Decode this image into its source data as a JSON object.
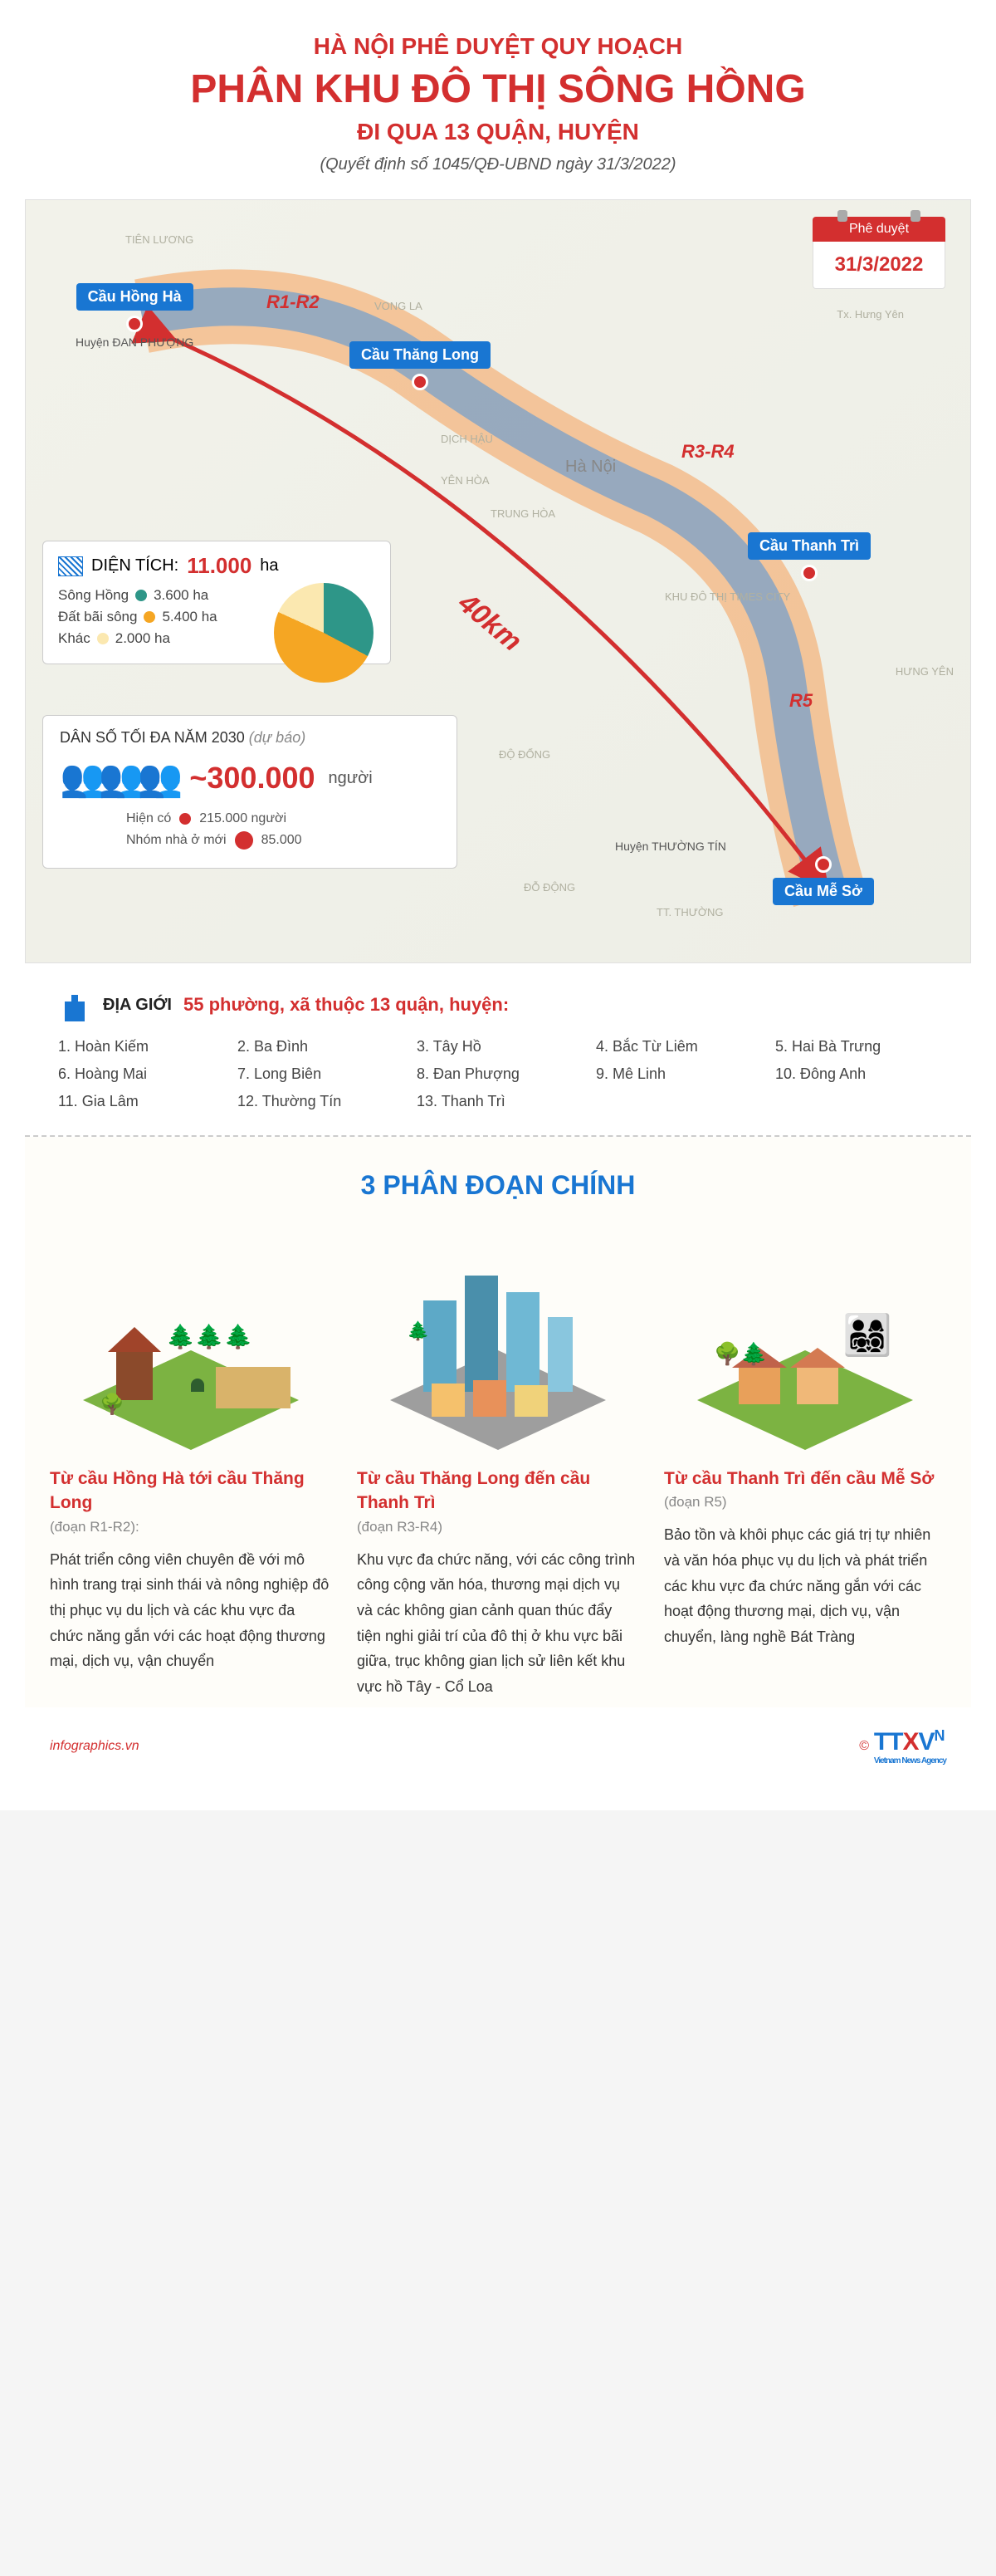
{
  "header": {
    "line1": "HÀ NỘI PHÊ DUYỆT QUY HOẠCH",
    "line2": "PHÂN KHU ĐÔ THỊ SÔNG HỒNG",
    "line3": "ĐI QUA 13 QUẬN, HUYỆN",
    "subtitle": "(Quyết định số 1045/QĐ-UBND ngày 31/3/2022)"
  },
  "date_tag": {
    "label": "Phê duyệt",
    "value": "31/3/2022"
  },
  "map": {
    "length_label": "40km",
    "bg_places": [
      "TIÊN LƯƠNG",
      "VONG LA",
      "DỊCH HẬU",
      "YÊN HÒA",
      "Hà Nội",
      "TRUNG HÒA",
      "KHU ĐÔ THỊ TIMES CITY",
      "ĐỘ ĐỔNG",
      "ĐỖ ĐỘNG",
      "HƯNG YÊN",
      "Tx. Hưng Yên",
      "Huyện ĐAN PHƯỢNG",
      "Huyện THƯỜNG TÍN",
      "TT. THƯỜNG"
    ],
    "markers": [
      {
        "name": "Cầu Hồng Hà",
        "sub": "Huyện ĐAN PHƯỢNG"
      },
      {
        "name": "Cầu Thăng Long",
        "sub": ""
      },
      {
        "name": "Cầu Thanh Trì",
        "sub": ""
      },
      {
        "name": "Cầu Mễ Sở",
        "sub": "Huyện THƯỜNG TÍN"
      }
    ],
    "zones": [
      "R1-R2",
      "R3-R4",
      "R5"
    ],
    "river_label": "Sông Hồng",
    "river_color": "#8fb4d9",
    "corridor_colors": [
      "#f5a05a",
      "#7fa3c7"
    ],
    "arrow_color": "#d32f2f"
  },
  "area": {
    "title_label": "DIỆN TÍCH:",
    "total": "11.000",
    "unit": "ha",
    "items": [
      {
        "label": "Sông Hồng",
        "value": "3.600 ha",
        "color": "#2e9688"
      },
      {
        "label": "Đất bãi sông",
        "value": "5.400 ha",
        "color": "#f5a623"
      },
      {
        "label": "Khác",
        "value": "2.000 ha",
        "color": "#fbe8b0"
      }
    ],
    "pie_values": [
      3600,
      5400,
      2000
    ]
  },
  "population": {
    "title": "DÂN SỐ TỐI ĐA NĂM 2030",
    "title_note": "(dự báo)",
    "main_value": "~300.000",
    "main_unit": "người",
    "sub": [
      {
        "label": "Hiện có",
        "value": "215.000 người",
        "dot_size": 14,
        "color": "#d32f2f"
      },
      {
        "label": "Nhóm nhà ở mới",
        "value": "85.000",
        "dot_size": 22,
        "color": "#d32f2f"
      }
    ]
  },
  "districts": {
    "label": "ĐỊA GIỚI",
    "count_text": "55 phường, xã thuộc 13 quận, huyện:",
    "list": [
      "Hoàn Kiếm",
      "Ba Đình",
      "Tây Hồ",
      "Bắc Từ Liêm",
      "Hai Bà Trưng",
      "Hoàng Mai",
      "Long Biên",
      "Đan Phượng",
      "Mê Linh",
      "Đông Anh",
      "Gia Lâm",
      "Thường Tín",
      "Thanh Trì"
    ]
  },
  "segments": {
    "title": "3 PHÂN ĐOẠN CHÍNH",
    "cols": [
      {
        "name": "Từ cầu Hồng Hà tới cầu Thăng Long",
        "code": "(đoạn R1-R2):",
        "desc": "Phát triển công viên chuyên đề với mô hình trang trại sinh thái và nông nghiệp đô thị phục vụ du lịch và các khu vực đa chức năng gắn với các hoạt động thương mại, dịch vụ, vận chuyển",
        "scene_type": "eco"
      },
      {
        "name": "Từ cầu Thăng Long đến cầu Thanh Trì",
        "code": "(đoạn R3-R4)",
        "desc": "Khu vực đa chức năng, với các công trình công cộng văn hóa, thương mại dịch vụ và các không gian cảnh quan thúc đẩy tiện nghi giải trí của đô thị ở khu vực bãi giữa, trục không gian lịch sử liên kết khu vực hồ Tây - Cổ Loa",
        "scene_type": "urban"
      },
      {
        "name": "Từ cầu Thanh Trì đến cầu Mễ Sở",
        "code": "(đoạn R5)",
        "desc": "Bảo tồn và khôi phục các giá trị tự nhiên và văn hóa phục vụ du lịch và phát triển các khu vực đa chức năng gắn với các hoạt động thương mại, dịch vụ, vận chuyển, làng nghề Bát Tràng",
        "scene_type": "village"
      }
    ]
  },
  "footer": {
    "site": "infographics.vn",
    "agency_blue": "TT",
    "agency_red": "X",
    "agency_v": "V",
    "agency_n": "N",
    "agency_sub": "Vietnam News Agency",
    "copyright": "©"
  },
  "colors": {
    "red": "#d32f2f",
    "blue": "#1976d2",
    "green": "#7cb342"
  }
}
